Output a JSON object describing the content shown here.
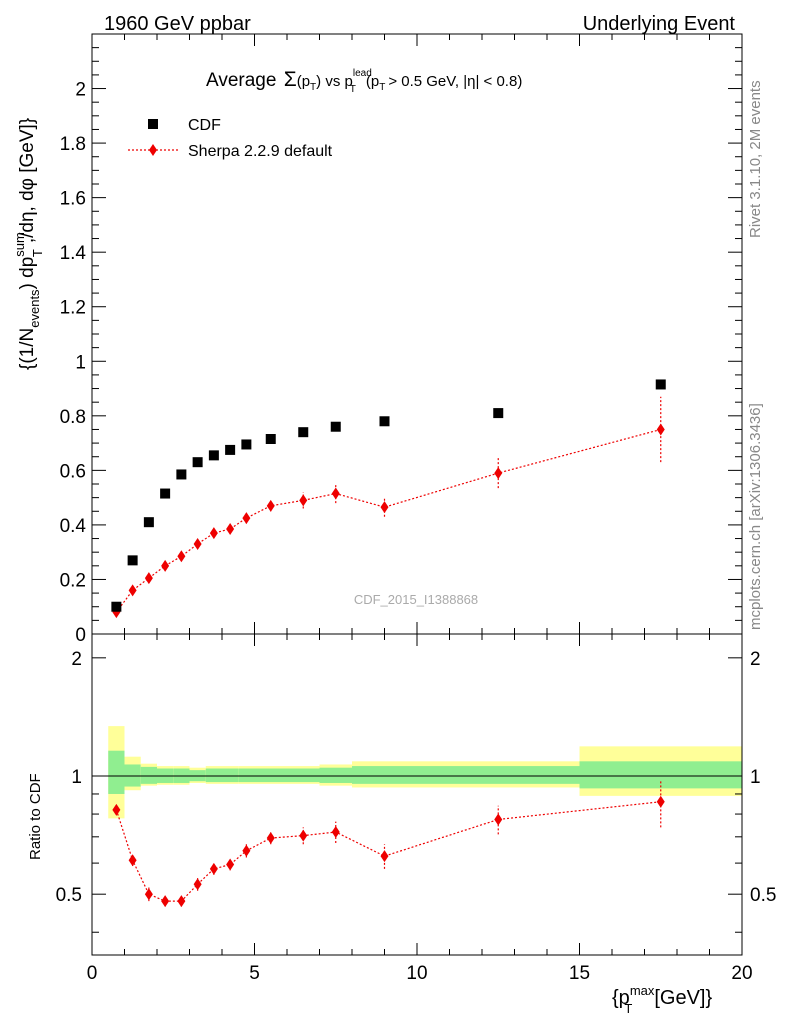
{
  "header": {
    "left": "1960 GeV ppbar",
    "right": "Underlying Event"
  },
  "side_labels": {
    "rivet": "Rivet 3.1.10,  2M events",
    "mcplots": "mcplots.cern.ch [arXiv:1306.3436]"
  },
  "watermark": "CDF_2015_I1388868",
  "chart_data": [
    {
      "type": "scatter",
      "title_parts": {
        "t1": "Average",
        "t2": "Σ",
        "t3": "(p",
        "t4": "T",
        "t5": ") vs p",
        "t6": "lead",
        "t7": "T",
        "t8": "(p",
        "t9": "T",
        "t10": "> 0.5 GeV, |η| < 0.8)"
      },
      "ylabel_parts": {
        "p1": "{(1/N",
        "p2": "events",
        "p3": ") dp",
        "p4": "sum",
        "p5": "T",
        "p6": ",/dη, dφ [GeV]}"
      },
      "xlim": [
        0,
        20
      ],
      "ylim": [
        0,
        2.2
      ],
      "yticks_labeled": [
        0,
        0.2,
        0.4,
        0.6,
        0.8,
        1,
        1.2,
        1.4,
        1.6,
        1.8,
        2
      ],
      "ytick_labels": [
        "0",
        "0.2",
        "0.4",
        "0.6",
        "0.8",
        "1",
        "1.2",
        "1.4",
        "1.6",
        "1.8",
        "2"
      ],
      "legend": {
        "placement": "top-left",
        "cdf": "CDF",
        "sherpa": "Sherpa 2.2.9 default"
      },
      "series": [
        {
          "name": "CDF",
          "color": "#000000",
          "marker": "square",
          "x": [
            0.75,
            1.25,
            1.75,
            2.25,
            2.75,
            3.25,
            3.75,
            4.25,
            4.75,
            5.5,
            6.5,
            7.5,
            9.0,
            12.5,
            17.5
          ],
          "y": [
            0.1,
            0.27,
            0.41,
            0.515,
            0.585,
            0.63,
            0.655,
            0.675,
            0.695,
            0.715,
            0.74,
            0.76,
            0.78,
            0.81,
            0.915
          ]
        },
        {
          "name": "Sherpa 2.2.9 default",
          "color": "#ee0000",
          "marker": "diamond",
          "x": [
            0.75,
            1.25,
            1.75,
            2.25,
            2.75,
            3.25,
            3.75,
            4.25,
            4.75,
            5.5,
            6.5,
            7.5,
            9.0,
            12.5,
            17.5
          ],
          "y": [
            0.08,
            0.16,
            0.205,
            0.25,
            0.285,
            0.33,
            0.37,
            0.385,
            0.425,
            0.47,
            0.49,
            0.515,
            0.465,
            0.59,
            0.75
          ],
          "err": [
            0.01,
            0.012,
            0.012,
            0.012,
            0.014,
            0.015,
            0.016,
            0.016,
            0.02,
            0.02,
            0.03,
            0.035,
            0.035,
            0.055,
            0.12
          ]
        }
      ]
    },
    {
      "type": "scatter",
      "ylabel": "Ratio to CDF",
      "xlabel_parts": {
        "p1": "{p",
        "p2": "max",
        "p3": "T",
        "p4": "[GeV]}"
      },
      "xlim": [
        0,
        20
      ],
      "ylim": [
        0.35,
        2.3
      ],
      "xticks_labeled": [
        0,
        5,
        10,
        15,
        20
      ],
      "xtick_labels": [
        "0",
        "5",
        "10",
        "15",
        "20"
      ],
      "yticks_labeled": [
        0.5,
        1,
        2
      ],
      "ytick_labels": [
        "0.5",
        "1",
        "2"
      ],
      "bands": {
        "edges": [
          0.5,
          1.0,
          1.5,
          2.0,
          2.5,
          3.0,
          3.5,
          4.0,
          4.5,
          5.0,
          6.0,
          7.0,
          8.0,
          10.0,
          15.0,
          20.0
        ],
        "inner_lo": [
          0.9,
          0.94,
          0.955,
          0.96,
          0.96,
          0.97,
          0.965,
          0.965,
          0.965,
          0.965,
          0.965,
          0.96,
          0.955,
          0.955,
          0.93
        ],
        "inner_hi": [
          1.16,
          1.07,
          1.055,
          1.045,
          1.045,
          1.035,
          1.045,
          1.045,
          1.045,
          1.045,
          1.045,
          1.05,
          1.06,
          1.06,
          1.09
        ],
        "outer_lo": [
          0.78,
          0.92,
          0.945,
          0.95,
          0.95,
          0.96,
          0.955,
          0.955,
          0.955,
          0.955,
          0.955,
          0.945,
          0.935,
          0.935,
          0.89
        ],
        "outer_hi": [
          1.34,
          1.12,
          1.075,
          1.06,
          1.06,
          1.05,
          1.06,
          1.06,
          1.06,
          1.06,
          1.06,
          1.07,
          1.09,
          1.09,
          1.19
        ],
        "inner_color": "#90ee90",
        "outer_color": "#ffff99"
      },
      "series": [
        {
          "name": "Sherpa 2.2.9 default",
          "color": "#ee0000",
          "x": [
            0.75,
            1.25,
            1.75,
            2.25,
            2.75,
            3.25,
            3.75,
            4.25,
            4.75,
            5.5,
            6.5,
            7.5,
            9.0,
            12.5,
            17.5
          ],
          "y": [
            0.82,
            0.61,
            0.5,
            0.48,
            0.48,
            0.53,
            0.58,
            0.595,
            0.645,
            0.695,
            0.705,
            0.72,
            0.625,
            0.775,
            0.86
          ],
          "err": [
            0.02,
            0.02,
            0.02,
            0.015,
            0.015,
            0.02,
            0.02,
            0.02,
            0.025,
            0.025,
            0.035,
            0.045,
            0.045,
            0.065,
            0.12
          ]
        }
      ]
    }
  ]
}
